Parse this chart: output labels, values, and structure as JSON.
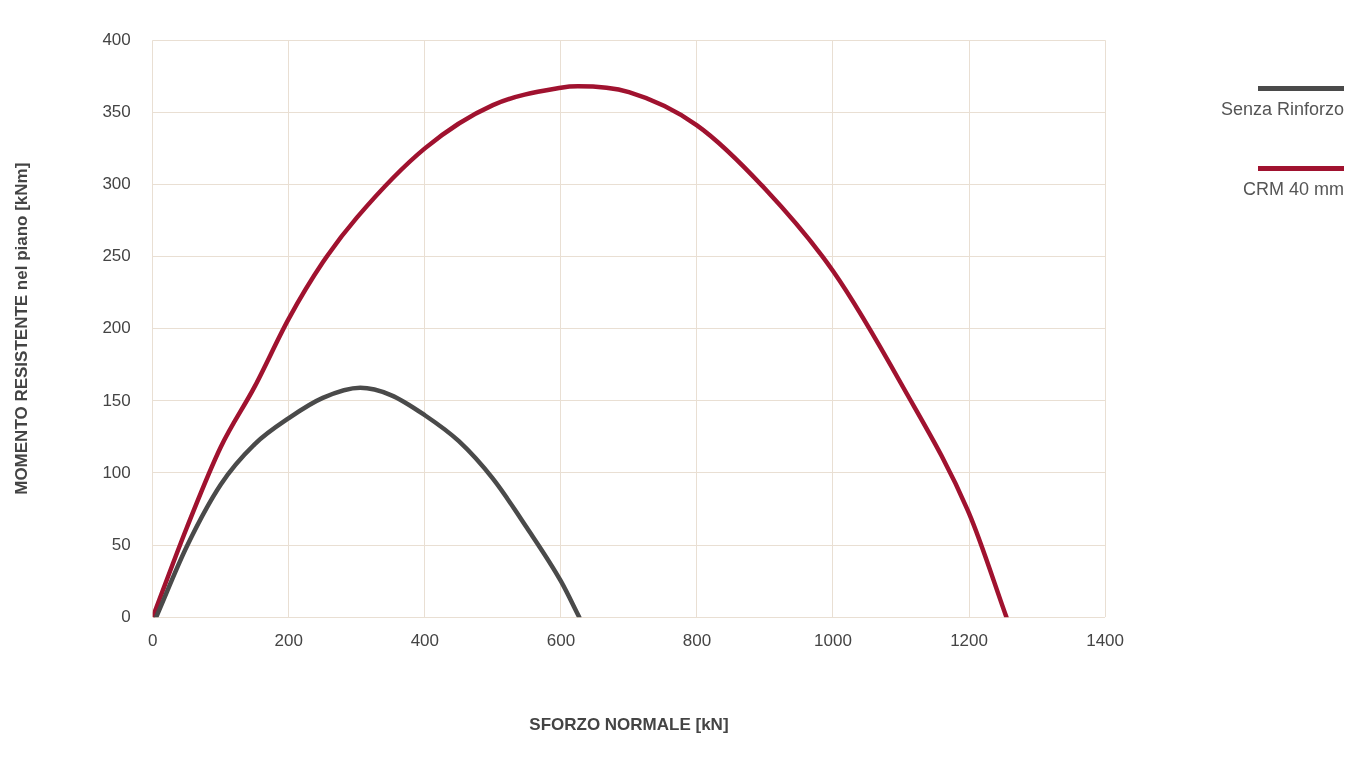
{
  "chart_data": {
    "type": "line",
    "xlabel": "SFORZO NORMALE [kN]",
    "ylabel": "MOMENTO RESISTENTE nel piano [kNm]",
    "xlim": [
      0,
      1400
    ],
    "xticks": [
      0,
      200,
      400,
      600,
      800,
      1000,
      1200,
      1400
    ],
    "ylim": [
      0,
      400
    ],
    "yticks": [
      0,
      50,
      100,
      150,
      200,
      250,
      300,
      350,
      400
    ],
    "grid": true,
    "legend": "right",
    "marker": "none",
    "line_style": "solid",
    "series": [
      {
        "name": "Senza Rinforzo",
        "color": "#4a4a4a",
        "x": [
          5,
          50,
          100,
          150,
          200,
          250,
          305,
          350,
          400,
          450,
          500,
          550,
          600,
          627
        ],
        "values": [
          0,
          49,
          92,
          120,
          138,
          152,
          159,
          154,
          140,
          122,
          96,
          62,
          25,
          0
        ]
      },
      {
        "name": "CRM 40 mm",
        "color": "#a0122f",
        "x": [
          0,
          50,
          100,
          150,
          200,
          250,
          300,
          400,
          500,
          600,
          625,
          700,
          800,
          900,
          1000,
          1100,
          1200,
          1255
        ],
        "values": [
          0,
          62,
          118,
          160,
          207,
          246,
          277,
          325,
          355,
          367,
          368,
          364,
          341,
          297,
          240,
          162,
          72,
          0
        ]
      }
    ]
  }
}
